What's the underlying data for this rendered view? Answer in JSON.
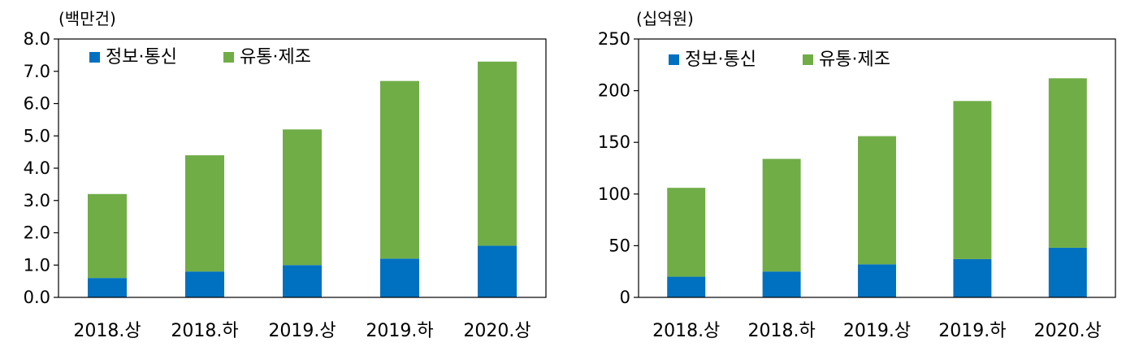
{
  "chart_data": [
    {
      "type": "bar",
      "stacked": true,
      "unit": "(백만건)",
      "categories": [
        "2018.상",
        "2018.하",
        "2019.상",
        "2019.하",
        "2020.상"
      ],
      "series": [
        {
          "name": "정보·통신",
          "color": "#0070C0",
          "values": [
            0.6,
            0.8,
            1.0,
            1.2,
            1.6
          ]
        },
        {
          "name": "유통·제조",
          "color": "#70AD47",
          "values": [
            2.6,
            3.6,
            4.2,
            5.5,
            5.7
          ]
        }
      ],
      "ylim": [
        0,
        8
      ],
      "yticks": [
        "0.0",
        "1.0",
        "2.0",
        "3.0",
        "4.0",
        "5.0",
        "6.0",
        "7.0",
        "8.0"
      ],
      "legend": "top-left",
      "grid": false
    },
    {
      "type": "bar",
      "stacked": true,
      "unit": "(십억원)",
      "categories": [
        "2018.상",
        "2018.하",
        "2019.상",
        "2019.하",
        "2020.상"
      ],
      "series": [
        {
          "name": "정보·통신",
          "color": "#0070C0",
          "values": [
            20,
            25,
            32,
            37,
            48
          ]
        },
        {
          "name": "유통·제조",
          "color": "#70AD47",
          "values": [
            86,
            109,
            124,
            153,
            164
          ]
        }
      ],
      "ylim": [
        0,
        250
      ],
      "yticks": [
        "0",
        "50",
        "100",
        "150",
        "200",
        "250"
      ],
      "legend": "top-left",
      "grid": false
    }
  ]
}
